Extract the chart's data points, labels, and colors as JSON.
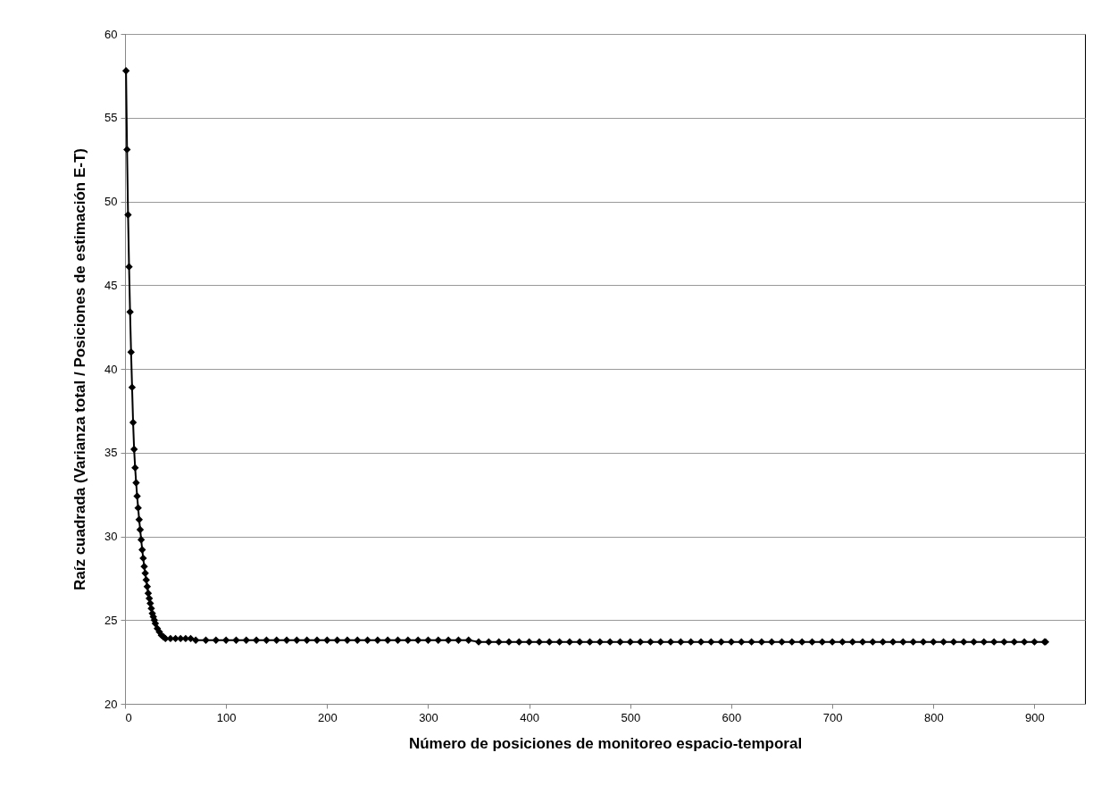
{
  "chart_data": {
    "type": "line",
    "xlabel": "Número de posiciones de monitoreo espacio-temporal",
    "ylabel": "Raíz  cuadrada (Varianza total / Posiciones de estimación E-T)",
    "x": [
      1,
      2,
      3,
      4,
      5,
      6,
      7,
      8,
      9,
      10,
      11,
      12,
      13,
      14,
      15,
      16,
      17,
      18,
      19,
      20,
      21,
      22,
      23,
      24,
      25,
      26,
      27,
      28,
      29,
      30,
      32,
      34,
      36,
      38,
      40,
      45,
      50,
      55,
      60,
      65,
      70,
      80,
      90,
      100,
      110,
      120,
      130,
      140,
      150,
      160,
      170,
      180,
      190,
      200,
      210,
      220,
      230,
      240,
      250,
      260,
      270,
      280,
      290,
      300,
      310,
      320,
      330,
      340,
      350,
      360,
      370,
      380,
      390,
      400,
      410,
      420,
      430,
      440,
      450,
      460,
      470,
      480,
      490,
      500,
      510,
      520,
      530,
      540,
      550,
      560,
      570,
      580,
      590,
      600,
      610,
      620,
      630,
      640,
      650,
      660,
      670,
      680,
      690,
      700,
      710,
      720,
      730,
      740,
      750,
      760,
      770,
      780,
      790,
      800,
      810,
      820,
      830,
      840,
      850,
      860,
      870,
      880,
      890,
      900,
      910,
      911
    ],
    "series": [
      {
        "color": "#000000",
        "values": [
          57.8,
          53.1,
          49.2,
          46.1,
          43.4,
          41.0,
          38.9,
          36.8,
          35.2,
          34.1,
          33.2,
          32.4,
          31.7,
          31.0,
          30.4,
          29.8,
          29.2,
          28.7,
          28.2,
          27.8,
          27.4,
          27.0,
          26.6,
          26.3,
          26.0,
          25.7,
          25.4,
          25.2,
          25.0,
          24.8,
          24.5,
          24.3,
          24.1,
          24.0,
          23.9,
          23.9,
          23.9,
          23.9,
          23.9,
          23.9,
          23.8,
          23.8,
          23.8,
          23.8,
          23.8,
          23.8,
          23.8,
          23.8,
          23.8,
          23.8,
          23.8,
          23.8,
          23.8,
          23.8,
          23.8,
          23.8,
          23.8,
          23.8,
          23.8,
          23.8,
          23.8,
          23.8,
          23.8,
          23.8,
          23.8,
          23.8,
          23.8,
          23.8,
          23.7,
          23.7,
          23.7,
          23.7,
          23.7,
          23.7,
          23.7,
          23.7,
          23.7,
          23.7,
          23.7,
          23.7,
          23.7,
          23.7,
          23.7,
          23.7,
          23.7,
          23.7,
          23.7,
          23.7,
          23.7,
          23.7,
          23.7,
          23.7,
          23.7,
          23.7,
          23.7,
          23.7,
          23.7,
          23.7,
          23.7,
          23.7,
          23.7,
          23.7,
          23.7,
          23.7,
          23.7,
          23.7,
          23.7,
          23.7,
          23.7,
          23.7,
          23.7,
          23.7,
          23.7,
          23.7,
          23.7,
          23.7,
          23.7,
          23.7,
          23.7,
          23.7,
          23.7,
          23.7,
          23.7,
          23.7,
          23.7,
          23.7
        ]
      }
    ],
    "xlim": [
      0,
      950
    ],
    "xticks": [
      0,
      100,
      200,
      300,
      400,
      500,
      600,
      700,
      800,
      900
    ],
    "ylim": [
      20,
      60
    ],
    "yticks": [
      20,
      25,
      30,
      35,
      40,
      45,
      50,
      55,
      60
    ],
    "grid": "y",
    "marker": "diamond",
    "line_style": "solid"
  }
}
